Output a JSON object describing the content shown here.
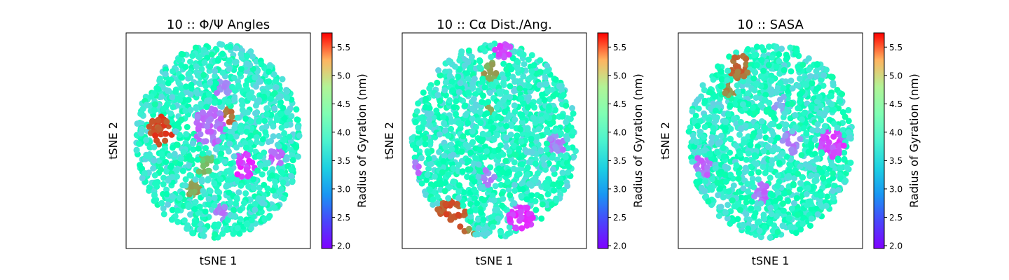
{
  "figure": {
    "colormap": "rainbow",
    "cmap_range": [
      1.95,
      5.75
    ]
  },
  "chart_data": [
    {
      "type": "scatter",
      "title": "10 :: Φ/Ψ Angles",
      "xlabel": "tSNE 1",
      "ylabel": "tSNE 2",
      "xticks": [],
      "yticks": [],
      "grid": false,
      "points_description_values": {
        "shape": "roughly circular cloud of overlapping markers",
        "dominant_value_range": [
          3.0,
          4.0
        ],
        "low_clusters": [
          2.2,
          2.6
        ],
        "high_clusters": [
          5.0,
          5.6
        ]
      },
      "colorbar": {
        "label": "Radius of Gyration (nm)",
        "ticks": [
          "2.0",
          "2.5",
          "3.0",
          "3.5",
          "4.0",
          "4.5",
          "5.0",
          "5.5"
        ],
        "tick_values": [
          2.0,
          2.5,
          3.0,
          3.5,
          4.0,
          4.5,
          5.0,
          5.5
        ],
        "range": [
          1.95,
          5.75
        ]
      }
    },
    {
      "type": "scatter",
      "title": "10 :: Cα Dist./Ang.",
      "xlabel": "tSNE 1",
      "ylabel": "tSNE 2",
      "xticks": [],
      "yticks": [],
      "grid": false,
      "points_description_values": {
        "shape": "roughly circular cloud of overlapping markers",
        "dominant_value_range": [
          3.0,
          4.0
        ],
        "low_clusters": [
          2.0,
          2.6
        ],
        "high_clusters": [
          4.8,
          5.7
        ]
      },
      "colorbar": {
        "label": "Radius of Gyration (nm)",
        "ticks": [
          "2.0",
          "2.5",
          "3.0",
          "3.5",
          "4.0",
          "4.5",
          "5.0",
          "5.5"
        ],
        "tick_values": [
          2.0,
          2.5,
          3.0,
          3.5,
          4.0,
          4.5,
          5.0,
          5.5
        ],
        "range": [
          1.95,
          5.75
        ]
      }
    },
    {
      "type": "scatter",
      "title": "10 :: SASA",
      "xlabel": "tSNE 1",
      "ylabel": "tSNE 2",
      "xticks": [],
      "yticks": [],
      "grid": false,
      "points_description_values": {
        "shape": "roughly circular cloud of looping trajectories",
        "dominant_value_range": [
          3.0,
          4.0
        ],
        "low_clusters": [
          2.2,
          2.6
        ],
        "high_clusters": [
          4.8,
          5.6
        ]
      },
      "colorbar": {
        "label": "Radius of Gyration (nm)",
        "ticks": [
          "2.0",
          "2.5",
          "3.0",
          "3.5",
          "4.0",
          "4.5",
          "5.0",
          "5.5"
        ],
        "tick_values": [
          2.0,
          2.5,
          3.0,
          3.5,
          4.0,
          4.5,
          5.0,
          5.5
        ],
        "range": [
          1.95,
          5.75
        ]
      }
    }
  ]
}
